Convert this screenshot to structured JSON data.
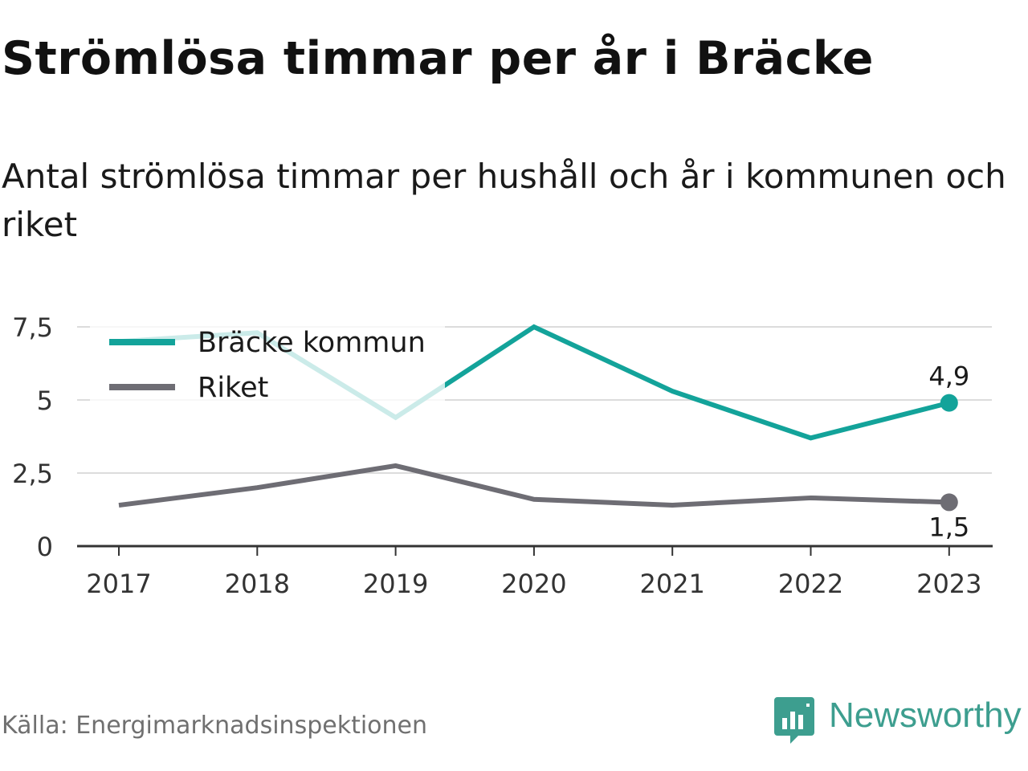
{
  "title": "Strömlösa timmar per år i Bräcke",
  "subtitle": "Antal strömlösa timmar per hushåll och år i kommunen och riket",
  "source": "Källa: Energimarknadsinspektionen",
  "brand": {
    "name": "Newsworthy",
    "icon": "newsworthy-logo-icon",
    "color": "#3d9e8f"
  },
  "chart_data": {
    "type": "line",
    "x": [
      "2017",
      "2018",
      "2019",
      "2020",
      "2021",
      "2022",
      "2023"
    ],
    "y_ticks": [
      "0",
      "2,5",
      "5",
      "7,5"
    ],
    "y_tick_values": [
      0,
      2.5,
      5,
      7.5
    ],
    "ylim": [
      0,
      7.5
    ],
    "grid": true,
    "legend_position": "top-left",
    "series": [
      {
        "name": "Bräcke kommun",
        "color": "#13a39a",
        "values": [
          7.0,
          7.3,
          4.4,
          7.5,
          5.3,
          3.7,
          4.9
        ],
        "end_label": "4,9"
      },
      {
        "name": "Riket",
        "color": "#6e6d74",
        "values": [
          1.4,
          2.0,
          2.75,
          1.6,
          1.4,
          1.65,
          1.5
        ],
        "end_label": "1,5"
      }
    ]
  }
}
